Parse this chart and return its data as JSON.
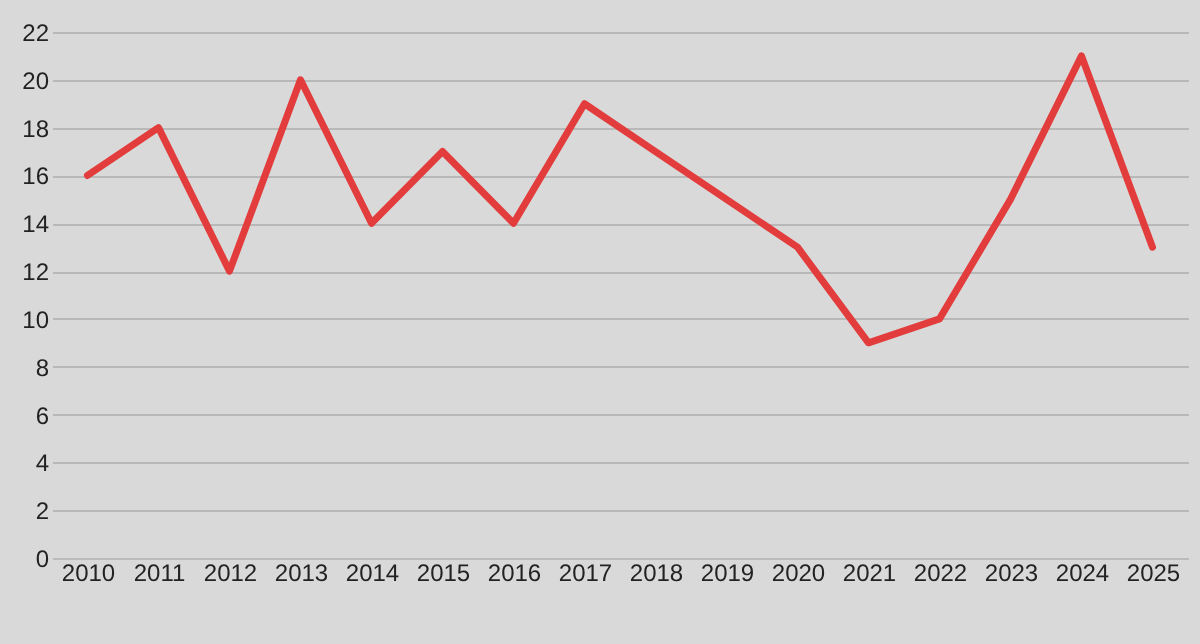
{
  "chart_data": {
    "type": "line",
    "categories": [
      "2010",
      "2011",
      "2012",
      "2013",
      "2014",
      "2015",
      "2016",
      "2017",
      "2018",
      "2019",
      "2020",
      "2021",
      "2022",
      "2023",
      "2024",
      "2025"
    ],
    "series": [
      {
        "color": "#e23c3c",
        "values": [
          16,
          18,
          12,
          20,
          14,
          17,
          14,
          19,
          17,
          15,
          13,
          9,
          10,
          15,
          21,
          13
        ]
      }
    ],
    "ylim": [
      0,
      22
    ],
    "yticks": [
      0,
      2,
      4,
      6,
      8,
      10,
      12,
      14,
      16,
      18,
      20,
      22
    ],
    "grid": "y",
    "marker": "none",
    "line_style": "solid"
  }
}
